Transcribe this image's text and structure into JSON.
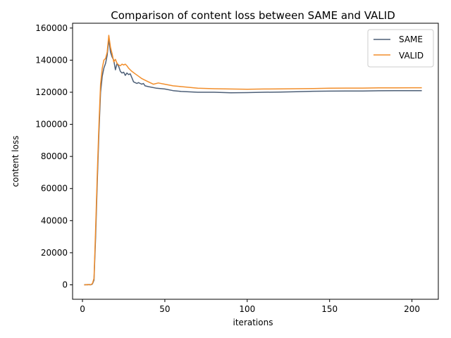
{
  "chart_data": {
    "type": "line",
    "title": "Comparison of content loss between SAME and VALID",
    "xlabel": "iterations",
    "ylabel": "content loss",
    "xlim": [
      -6,
      216
    ],
    "ylim": [
      -9000,
      163000
    ],
    "x_ticks": [
      0,
      50,
      100,
      150,
      200
    ],
    "y_ticks": [
      0,
      20000,
      40000,
      60000,
      80000,
      100000,
      120000,
      140000,
      160000
    ],
    "grid": false,
    "legend": "top-right",
    "series": [
      {
        "name": "SAME",
        "color": "#4d5f77",
        "points": [
          [
            1,
            0
          ],
          [
            2,
            100
          ],
          [
            3,
            0
          ],
          [
            4,
            200
          ],
          [
            5,
            0
          ],
          [
            6,
            500
          ],
          [
            7,
            3000
          ],
          [
            8,
            30000
          ],
          [
            9,
            65000
          ],
          [
            10,
            95000
          ],
          [
            11,
            120000
          ],
          [
            12,
            130000
          ],
          [
            13,
            135000
          ],
          [
            14,
            138000
          ],
          [
            15,
            143000
          ],
          [
            16,
            153000
          ],
          [
            17,
            145000
          ],
          [
            18,
            142000
          ],
          [
            19,
            140000
          ],
          [
            20,
            134000
          ],
          [
            21,
            138000
          ],
          [
            22,
            136000
          ],
          [
            23,
            133000
          ],
          [
            24,
            132000
          ],
          [
            25,
            132500
          ],
          [
            26,
            130500
          ],
          [
            27,
            132000
          ],
          [
            28,
            131000
          ],
          [
            29,
            131500
          ],
          [
            30,
            129000
          ],
          [
            31,
            126500
          ],
          [
            32,
            126000
          ],
          [
            33,
            125500
          ],
          [
            34,
            126000
          ],
          [
            35,
            125500
          ],
          [
            36,
            125000
          ],
          [
            37,
            125500
          ],
          [
            38,
            124000
          ],
          [
            40,
            123500
          ],
          [
            45,
            122500
          ],
          [
            50,
            122000
          ],
          [
            55,
            121000
          ],
          [
            60,
            120500
          ],
          [
            70,
            120000
          ],
          [
            80,
            120000
          ],
          [
            90,
            119700
          ],
          [
            100,
            119800
          ],
          [
            110,
            120000
          ],
          [
            120,
            120100
          ],
          [
            130,
            120300
          ],
          [
            140,
            120600
          ],
          [
            150,
            120700
          ],
          [
            160,
            120800
          ],
          [
            170,
            120800
          ],
          [
            180,
            120900
          ],
          [
            190,
            121000
          ],
          [
            200,
            121000
          ],
          [
            206,
            121000
          ]
        ]
      },
      {
        "name": "VALID",
        "color": "#f28e2b",
        "points": [
          [
            1,
            0
          ],
          [
            2,
            0
          ],
          [
            3,
            200
          ],
          [
            4,
            0
          ],
          [
            5,
            100
          ],
          [
            6,
            800
          ],
          [
            7,
            4000
          ],
          [
            8,
            35000
          ],
          [
            9,
            70000
          ],
          [
            10,
            100000
          ],
          [
            11,
            125000
          ],
          [
            12,
            135000
          ],
          [
            13,
            140000
          ],
          [
            14,
            141000
          ],
          [
            15,
            145000
          ],
          [
            16,
            155500
          ],
          [
            17,
            148000
          ],
          [
            18,
            144000
          ],
          [
            19,
            139000
          ],
          [
            20,
            140500
          ],
          [
            21,
            138000
          ],
          [
            22,
            137000
          ],
          [
            23,
            136500
          ],
          [
            24,
            137500
          ],
          [
            25,
            137000
          ],
          [
            26,
            137500
          ],
          [
            27,
            136500
          ],
          [
            28,
            135000
          ],
          [
            29,
            134000
          ],
          [
            30,
            133000
          ],
          [
            32,
            131500
          ],
          [
            34,
            130000
          ],
          [
            36,
            128500
          ],
          [
            38,
            127500
          ],
          [
            40,
            126500
          ],
          [
            43,
            125000
          ],
          [
            46,
            125800
          ],
          [
            50,
            125000
          ],
          [
            55,
            124000
          ],
          [
            60,
            123500
          ],
          [
            70,
            122500
          ],
          [
            80,
            122200
          ],
          [
            90,
            122000
          ],
          [
            100,
            121900
          ],
          [
            110,
            122000
          ],
          [
            120,
            122100
          ],
          [
            130,
            122200
          ],
          [
            140,
            122300
          ],
          [
            150,
            122500
          ],
          [
            160,
            122600
          ],
          [
            170,
            122600
          ],
          [
            180,
            122700
          ],
          [
            190,
            122700
          ],
          [
            200,
            122800
          ],
          [
            206,
            122800
          ]
        ]
      }
    ]
  }
}
